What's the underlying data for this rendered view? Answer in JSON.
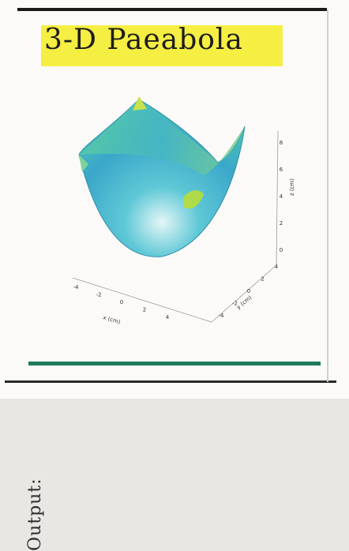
{
  "title": "3-D Paeabola",
  "side_label": "Output:",
  "colors": {
    "title_highlight": "#f5ee43",
    "bottom_rule": "#1e7a5c",
    "surface_low": "#3fd0c8",
    "surface_mid": "#3aa7c9",
    "surface_high": "#b8dd3a"
  },
  "chart_data": {
    "type": "surface",
    "function": "z = x^2 + y^2",
    "xlabel": "x (cm)",
    "ylabel": "y (cm)",
    "zlabel": "z (cm)",
    "x_ticks": [
      "-4",
      "-2",
      "0",
      "2",
      "4"
    ],
    "y_ticks": [
      "-4",
      "-2",
      "0",
      "2",
      "4"
    ],
    "z_ticks": [
      "0",
      "2",
      "4",
      "6",
      "8"
    ],
    "xlim": [
      -4,
      4
    ],
    "ylim": [
      -4,
      4
    ],
    "zlim": [
      0,
      8
    ],
    "grid": false
  }
}
